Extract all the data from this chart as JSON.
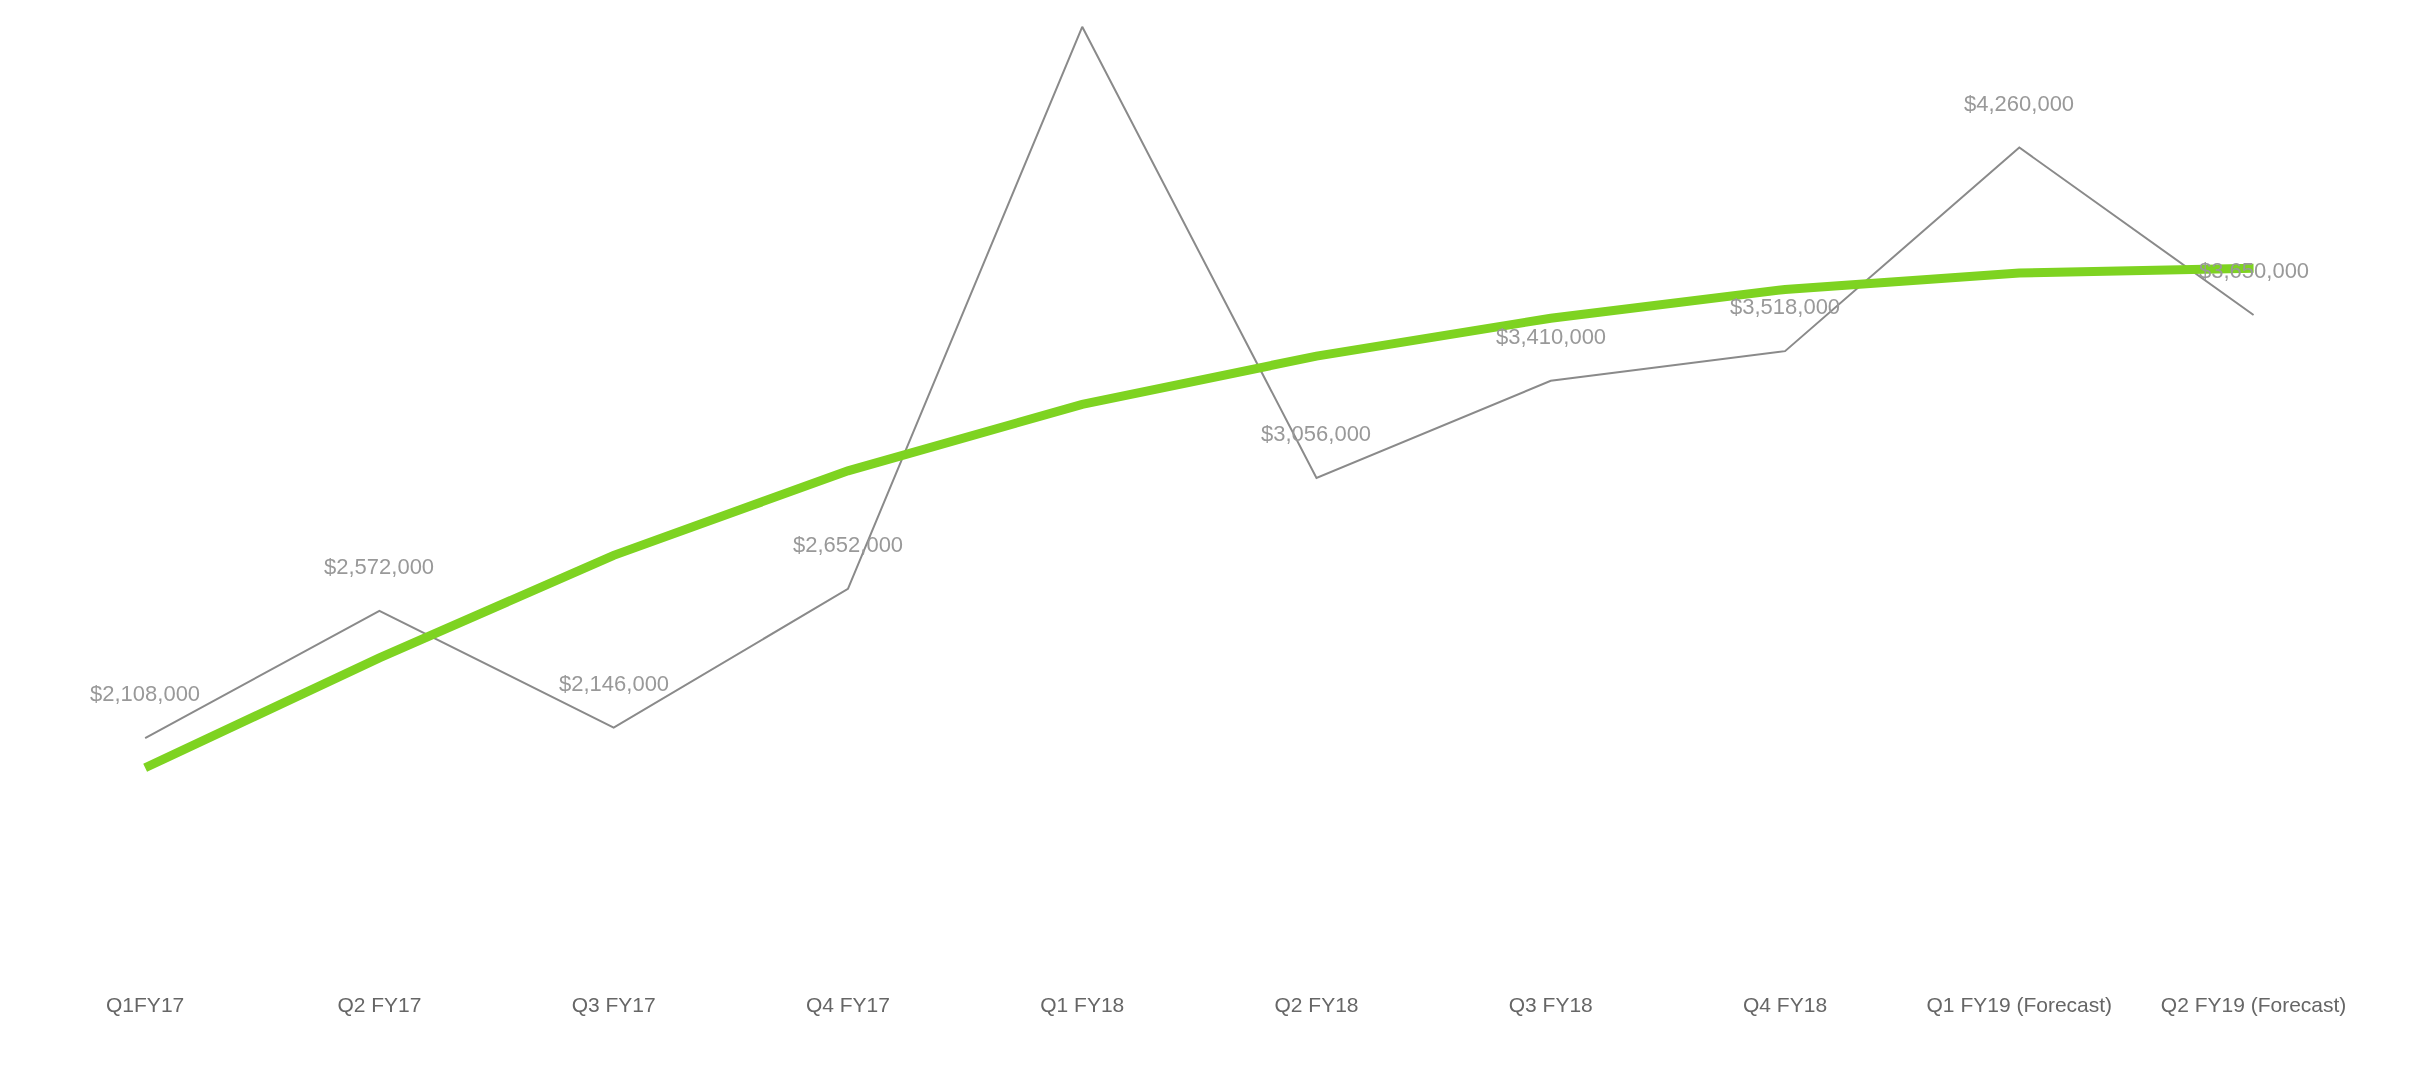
{
  "chart_data": {
    "type": "line",
    "categories": [
      "Q1FY17",
      "Q2 FY17",
      "Q3 FY17",
      "Q4 FY17",
      "Q1 FY18",
      "Q2 FY18",
      "Q3 FY18",
      "Q4 FY18",
      "Q1 FY19 (Forecast)",
      "Q2 FY19 (Forecast)"
    ],
    "series": [
      {
        "color": "#8a8a8a",
        "values": [
          2108000,
          2572000,
          2146000,
          2652000,
          4700000,
          3056000,
          3410000,
          3518000,
          4260000,
          3650000
        ],
        "value_labels": [
          "$2,108,000",
          "$2,572,000",
          "$2,146,000",
          "$2,652,000",
          null,
          "$3,056,000",
          "$3,410,000",
          "$3,518,000",
          "$4,260,000",
          "$3,650,000"
        ]
      },
      {
        "type": "line",
        "color": "#7ed321",
        "values": [
          2000000,
          2400000,
          2774000,
          3082000,
          3324000,
          3500000,
          3638000,
          3743000,
          3803000,
          3820000
        ]
      }
    ],
    "legend": false,
    "marker": "none",
    "line_style": "solid"
  }
}
